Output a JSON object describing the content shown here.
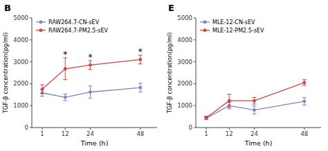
{
  "chart_data": [
    {
      "type": "line",
      "title": "B",
      "x_label": "Time (h)",
      "y_label": "TGF-β concentration(pg/ml)",
      "x": [
        1,
        12,
        24,
        48
      ],
      "xlim": [
        -4,
        56
      ],
      "xticks": [
        1,
        12,
        24,
        48
      ],
      "ylim": [
        0,
        5000
      ],
      "yticks": [
        0,
        1000,
        2000,
        3000,
        4000,
        5000
      ],
      "series": [
        {
          "name": "RAW264.7-CN-sEV",
          "color": "#8080cc",
          "marker": "circle",
          "values": [
            1580,
            1380,
            1620,
            1820
          ],
          "errors": [
            150,
            150,
            280,
            200
          ]
        },
        {
          "name": "RAW264.7-PM2.5-sEV",
          "color": "#cc4444",
          "marker": "circle",
          "values": [
            1750,
            2680,
            2850,
            3100
          ],
          "errors": [
            200,
            500,
            200,
            200
          ]
        }
      ],
      "annotations": [
        {
          "x": 12,
          "text": "*"
        },
        {
          "x": 24,
          "text": "*"
        },
        {
          "x": 48,
          "text": "*"
        }
      ],
      "legend": "upper-left",
      "grid": false
    },
    {
      "type": "line",
      "title": "E",
      "x_label": "Time (h)",
      "y_label": "TGF-β concentration(pg/ml)",
      "x": [
        1,
        12,
        24,
        48
      ],
      "xlim": [
        -4,
        56
      ],
      "xticks": [
        1,
        12,
        24,
        48
      ],
      "ylim": [
        0,
        5000
      ],
      "yticks": [
        0,
        1000,
        2000,
        3000,
        4000,
        5000
      ],
      "series": [
        {
          "name": "MLE-12-CN-sEV",
          "color": "#8080cc",
          "marker": "circle",
          "values": [
            430,
            1000,
            800,
            1200
          ],
          "errors": [
            60,
            150,
            180,
            170
          ]
        },
        {
          "name": "MLE-12-PM2.5-sEV",
          "color": "#cc4444",
          "marker": "circle",
          "values": [
            450,
            1220,
            1220,
            2050
          ],
          "errors": [
            70,
            300,
            150,
            130
          ]
        }
      ],
      "legend": "upper-left",
      "grid": false
    }
  ]
}
